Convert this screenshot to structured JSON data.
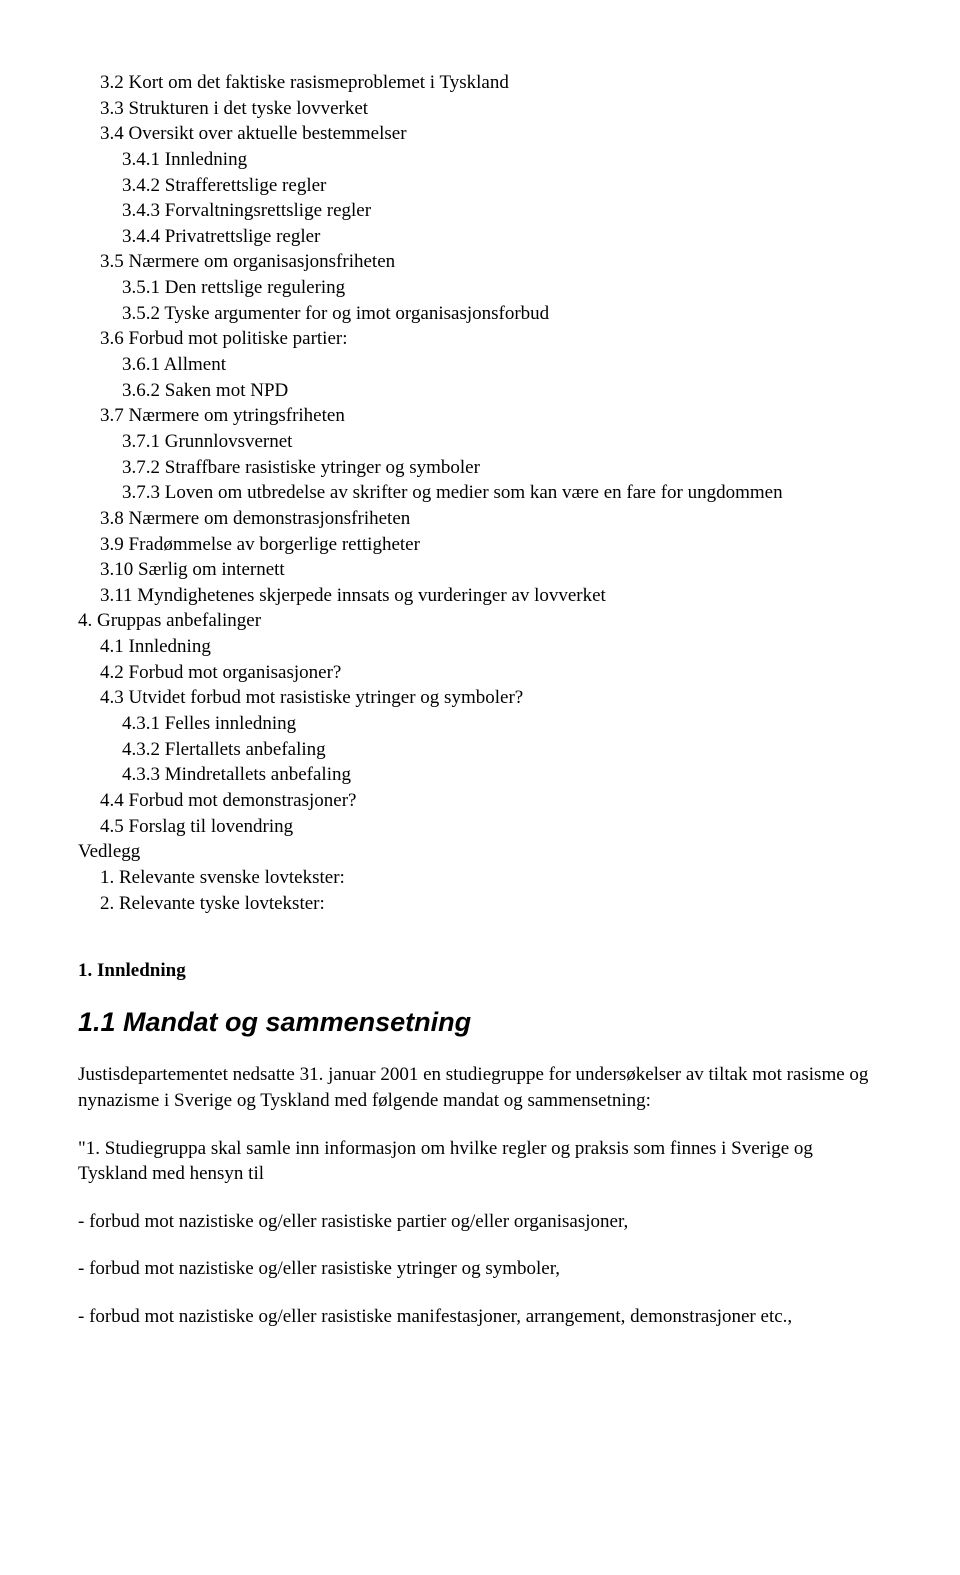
{
  "toc": {
    "l1": "3.2 Kort om det faktiske rasismeproblemet i Tyskland",
    "l2": "3.3 Strukturen i det tyske lovverket",
    "l3": "3.4 Oversikt over aktuelle bestemmelser",
    "l4": "3.4.1 Innledning",
    "l5": "3.4.2 Strafferettslige regler",
    "l6": "3.4.3 Forvaltningsrettslige regler",
    "l7": "3.4.4 Privatrettslige regler",
    "l8": "3.5 Nærmere om organisasjonsfriheten",
    "l9": "3.5.1 Den rettslige regulering",
    "l10": "3.5.2 Tyske argumenter for og imot organisasjonsforbud",
    "l11": "3.6 Forbud mot politiske partier:",
    "l12": "3.6.1 Allment",
    "l13": "3.6.2 Saken mot NPD",
    "l14": "3.7 Nærmere om ytringsfriheten",
    "l15": "3.7.1 Grunnlovsvernet",
    "l16": "3.7.2 Straffbare rasistiske ytringer og symboler",
    "l17": "3.7.3 Loven om utbredelse av skrifter og medier som kan være en fare for ungdommen",
    "l18": "3.8 Nærmere om demonstrasjonsfriheten",
    "l19": "3.9 Fradømmelse av borgerlige rettigheter",
    "l20": "3.10 Særlig om internett",
    "l21": "3.11 Myndighetenes skjerpede innsats og vurderinger av lovverket",
    "l22": "4. Gruppas anbefalinger",
    "l23": "4.1 Innledning",
    "l24": "4.2 Forbud mot organisasjoner?",
    "l25": "4.3 Utvidet forbud mot rasistiske ytringer og symboler?",
    "l26": "4.3.1 Felles innledning",
    "l27": "4.3.2 Flertallets anbefaling",
    "l28": "4.3.3 Mindretallets anbefaling",
    "l29": "4.4 Forbud mot demonstrasjoner?",
    "l30": "4.5 Forslag til lovendring",
    "l31": "Vedlegg",
    "l32": "1. Relevante svenske lovtekster:",
    "l33": "2. Relevante tyske lovtekster:"
  },
  "heading1": "1. Innledning",
  "heading2": "1.1 Mandat og sammensetning",
  "p1": "Justisdepartementet nedsatte 31. januar 2001 en studiegruppe for undersøkelser av tiltak mot rasisme og nynazisme i Sverige og Tyskland med følgende mandat og sammensetning:",
  "p2": "\"1. Studiegruppa skal samle inn informasjon om hvilke regler og praksis som finnes i Sverige og Tyskland med hensyn til",
  "b1": "- forbud mot nazistiske og/eller rasistiske partier og/eller organisasjoner,",
  "b2": "- forbud mot nazistiske og/eller rasistiske ytringer og symboler,",
  "b3": "- forbud mot nazistiske og/eller rasistiske manifestasjoner, arrangement, demonstrasjoner etc.,"
}
